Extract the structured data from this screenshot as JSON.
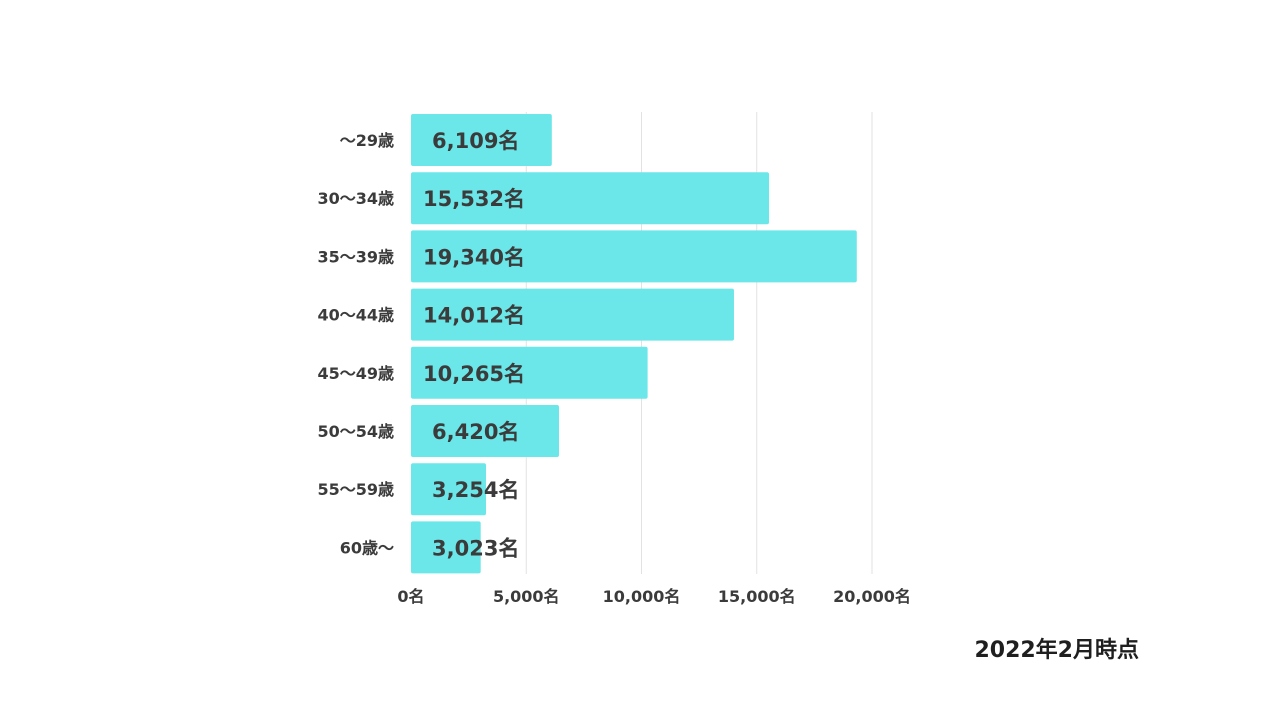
{
  "chart_data": {
    "type": "bar",
    "orientation": "horizontal",
    "categories": [
      "〜29歳",
      "30〜34歳",
      "35〜39歳",
      "40〜44歳",
      "45〜49歳",
      "50〜54歳",
      "55〜59歳",
      "60歳〜"
    ],
    "values": [
      6109,
      15532,
      19340,
      14012,
      10265,
      6420,
      3254,
      3023
    ],
    "value_labels": [
      "6,109名",
      "15,532名",
      "19,340名",
      "14,012名",
      "10,265名",
      "6,420名",
      "3,254名",
      "3,023名"
    ],
    "x_ticks": [
      0,
      5000,
      10000,
      15000,
      20000
    ],
    "x_tick_labels": [
      "0名",
      "5,000名",
      "10,000名",
      "15,000名",
      "20,000名"
    ],
    "xlim": [
      0,
      20000
    ],
    "grid": true,
    "bar_color": "#6be6e9",
    "text_color": "#3b3b3b",
    "grid_color": "#e2e2e2"
  },
  "note": "2022年2月時点"
}
